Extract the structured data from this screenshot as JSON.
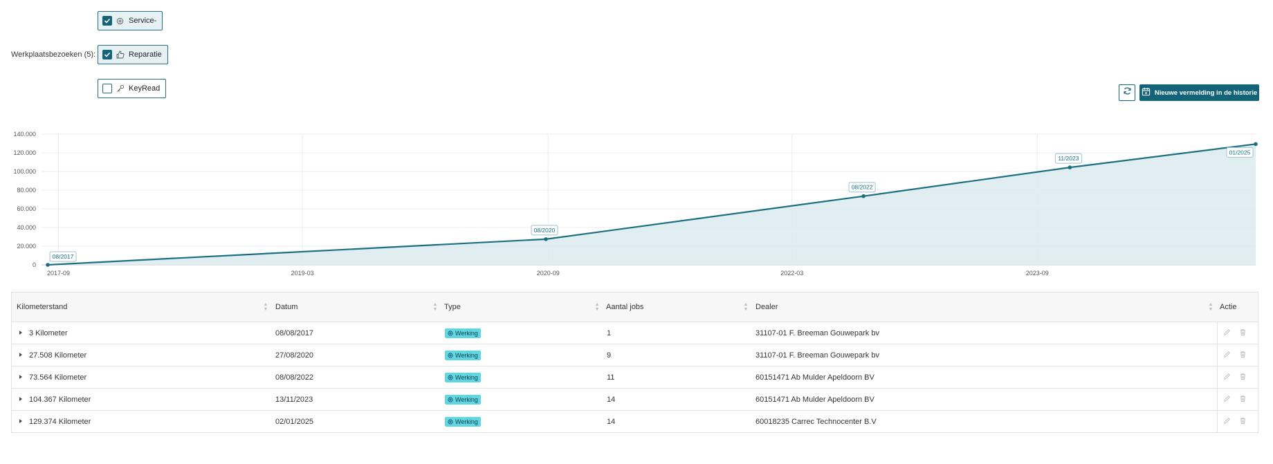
{
  "filters": {
    "label": "Werkplaatsbezoeken (5):",
    "chips": [
      {
        "label": "Service-",
        "checked": true,
        "icon": "gear-icon"
      },
      {
        "label": "Reparatie",
        "checked": true,
        "icon": "thumbs-up-icon"
      },
      {
        "label": "KeyRead",
        "checked": false,
        "icon": "key-icon"
      }
    ]
  },
  "toolbar": {
    "refresh_icon": "refresh-icon",
    "new_entry_label": "Nieuwe vermelding in de historie",
    "new_entry_icon": "calendar-icon"
  },
  "colors": {
    "accent": "#136479",
    "line": "#1b6f82",
    "area": "#dbebf0",
    "badge": "#5fd6e2"
  },
  "chart_data": {
    "type": "area",
    "x": [
      "2017-08-08",
      "2020-08-27",
      "2022-08-08",
      "2023-11-13",
      "2025-01-02"
    ],
    "values": [
      3,
      27508,
      73564,
      104367,
      129374
    ],
    "point_labels": [
      "08/2017",
      "08/2020",
      "08/2022",
      "11/2023",
      "01/2025"
    ],
    "ylim": [
      0,
      140000
    ],
    "yticks": [
      "0",
      "20.000",
      "40.000",
      "60.000",
      "80.000",
      "100.000",
      "120.000",
      "140.000"
    ],
    "xticks": [
      "2017-09",
      "2019-03",
      "2020-09",
      "2022-03",
      "2023-09"
    ],
    "grid": true
  },
  "table": {
    "headers": [
      "Kilometerstand",
      "Datum",
      "Type",
      "Aantal jobs",
      "Dealer",
      "Actie"
    ],
    "rows": [
      {
        "km": "3 Kilometer",
        "date": "08/08/2017",
        "type": "Werking",
        "jobs": "1",
        "dealer": "31107-01 F. Breeman Gouwepark bv"
      },
      {
        "km": "27.508 Kilometer",
        "date": "27/08/2020",
        "type": "Werking",
        "jobs": "9",
        "dealer": "31107-01 F. Breeman Gouwepark bv"
      },
      {
        "km": "73.564 Kilometer",
        "date": "08/08/2022",
        "type": "Werking",
        "jobs": "11",
        "dealer": "60151471 Ab Mulder Apeldoorn BV"
      },
      {
        "km": "104.367 Kilometer",
        "date": "13/11/2023",
        "type": "Werking",
        "jobs": "14",
        "dealer": "60151471 Ab Mulder Apeldoorn BV"
      },
      {
        "km": "129.374 Kilometer",
        "date": "02/01/2025",
        "type": "Werking",
        "jobs": "14",
        "dealer": "60018235 Carrec Technocenter B.V"
      }
    ]
  }
}
